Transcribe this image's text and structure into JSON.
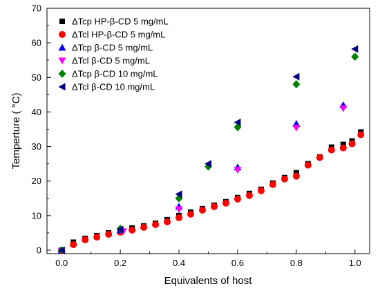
{
  "chart_data": {
    "type": "scatter",
    "title": "",
    "xlabel": "Equivalents of host",
    "ylabel": "Temperture ( °C)",
    "xlim": [
      -0.05,
      1.05
    ],
    "ylim": [
      -1,
      70
    ],
    "xticks": [
      "0.0",
      "0.2",
      "0.4",
      "0.6",
      "0.8",
      "1.0"
    ],
    "yticks": [
      "0",
      "10",
      "20",
      "30",
      "40",
      "50",
      "60",
      "70"
    ],
    "grid": false,
    "legend_position": "top-left",
    "series": [
      {
        "name": "ΔTcp HP-β-CD 5 mg/mL",
        "marker": "square",
        "color": "#000000",
        "x": [
          0.0,
          0.04,
          0.08,
          0.12,
          0.16,
          0.2,
          0.24,
          0.28,
          0.32,
          0.36,
          0.4,
          0.44,
          0.48,
          0.52,
          0.56,
          0.6,
          0.64,
          0.68,
          0.72,
          0.76,
          0.8,
          0.84,
          0.88,
          0.92,
          0.96,
          0.99,
          1.02
        ],
        "y": [
          0.0,
          2.3,
          3.4,
          4.2,
          5.0,
          5.8,
          6.4,
          7.0,
          7.8,
          8.8,
          10.0,
          11.0,
          12.0,
          13.0,
          14.0,
          15.2,
          16.4,
          17.6,
          19.4,
          21.0,
          22.4,
          25.0,
          27.0,
          29.8,
          30.6,
          31.6,
          34.2
        ]
      },
      {
        "name": "ΔTcl  HP-β-CD 5 mg/mL",
        "marker": "circle",
        "color": "#ff0000",
        "x": [
          0.0,
          0.04,
          0.08,
          0.12,
          0.16,
          0.2,
          0.24,
          0.28,
          0.32,
          0.36,
          0.4,
          0.44,
          0.48,
          0.52,
          0.56,
          0.6,
          0.64,
          0.68,
          0.72,
          0.76,
          0.8,
          0.84,
          0.88,
          0.92,
          0.96,
          0.99,
          1.02
        ],
        "y": [
          -0.2,
          1.6,
          3.0,
          3.8,
          4.6,
          5.2,
          5.8,
          6.6,
          7.4,
          8.2,
          9.4,
          10.4,
          11.6,
          12.6,
          13.6,
          14.8,
          15.8,
          17.2,
          19.0,
          20.6,
          21.4,
          24.6,
          26.8,
          29.0,
          29.6,
          30.8,
          33.4
        ]
      },
      {
        "name": "ΔTcp β-CD 5 mg/mL",
        "marker": "triangle-up",
        "color": "#0000ff",
        "x": [
          0.0,
          0.2,
          0.4,
          0.6,
          0.8,
          0.96
        ],
        "y": [
          0.0,
          5.8,
          12.6,
          24.0,
          36.6,
          42.0
        ]
      },
      {
        "name": "ΔTcl  β-CD 5 mg/mL",
        "marker": "triangle-down",
        "color": "#ff00ff",
        "x": [
          0.0,
          0.21,
          0.4,
          0.6,
          0.8,
          0.96
        ],
        "y": [
          -0.2,
          5.4,
          11.8,
          23.2,
          35.4,
          41.0
        ]
      },
      {
        "name": "ΔTcp β-CD 10 mg/mL",
        "marker": "diamond",
        "color": "#008000",
        "x": [
          0.0,
          0.2,
          0.4,
          0.5,
          0.6,
          0.8,
          1.0
        ],
        "y": [
          0.0,
          6.2,
          15.0,
          24.2,
          35.6,
          48.0,
          56.0
        ]
      },
      {
        "name": "ΔTcl  β-CD 10 mg/mL",
        "marker": "triangle-left",
        "color": "#000080",
        "x": [
          0.0,
          0.2,
          0.4,
          0.5,
          0.6,
          0.8,
          1.0
        ],
        "y": [
          0.0,
          6.0,
          16.2,
          25.0,
          37.0,
          50.2,
          58.2
        ]
      }
    ]
  }
}
